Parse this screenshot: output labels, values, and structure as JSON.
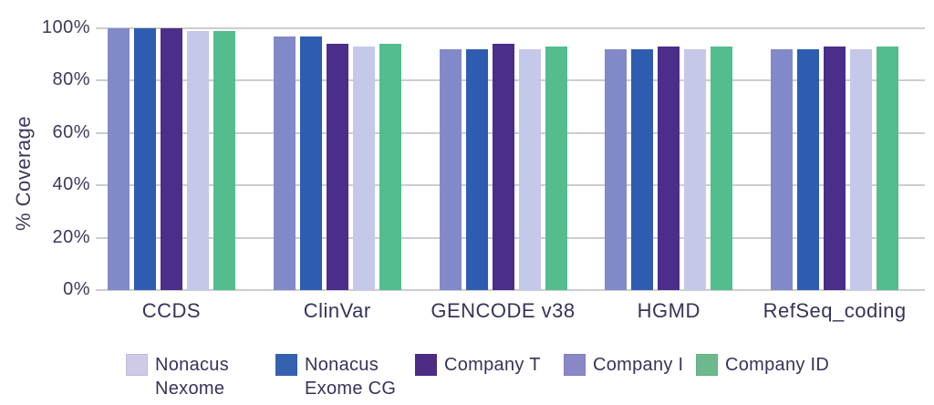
{
  "chart_data": {
    "type": "bar",
    "title": "",
    "xlabel": "",
    "ylabel": "% Coverage",
    "ylim": [
      0,
      100
    ],
    "grid": true,
    "legend_position": "bottom",
    "ytick_labels": [
      "100%",
      "80%",
      "60%",
      "40%",
      "20%",
      "0%"
    ],
    "ytick_values": [
      100,
      80,
      60,
      40,
      20,
      0
    ],
    "categories": [
      "CCDS",
      "ClinVar",
      "GENCODE v38",
      "HGMD",
      "RefSeq_coding"
    ],
    "series": [
      {
        "name": "Nonacus Nexome",
        "legend_lines": [
          "Nonacus",
          "Nexome"
        ],
        "bar_color": "#8289c8",
        "legend_swatch_color": "#cecae8",
        "values": [
          100,
          97,
          92,
          92,
          92
        ]
      },
      {
        "name": "Nonacus Exome CG",
        "legend_lines": [
          "Nonacus",
          "Exome CG"
        ],
        "bar_color": "#2e5cb1",
        "legend_swatch_color": "#3562af",
        "values": [
          100,
          97,
          92,
          92,
          92
        ]
      },
      {
        "name": "Company T",
        "legend_lines": [
          "Company T"
        ],
        "bar_color": "#4b2e89",
        "legend_swatch_color": "#4c2d83",
        "values": [
          100,
          94,
          94,
          93,
          93
        ]
      },
      {
        "name": "Company I",
        "legend_lines": [
          "Company I"
        ],
        "bar_color": "#c5c8e8",
        "legend_swatch_color": "#8a87c6",
        "values": [
          99,
          93,
          92,
          92,
          92
        ]
      },
      {
        "name": "Company ID",
        "legend_lines": [
          "Company ID"
        ],
        "bar_color": "#53bd8e",
        "legend_swatch_color": "#6cba8b",
        "values": [
          99,
          94,
          93,
          93,
          93
        ]
      }
    ],
    "colors": {
      "background": "#ffffff",
      "text": "#3b3a5d",
      "gridline": "#cdcdd0"
    }
  }
}
